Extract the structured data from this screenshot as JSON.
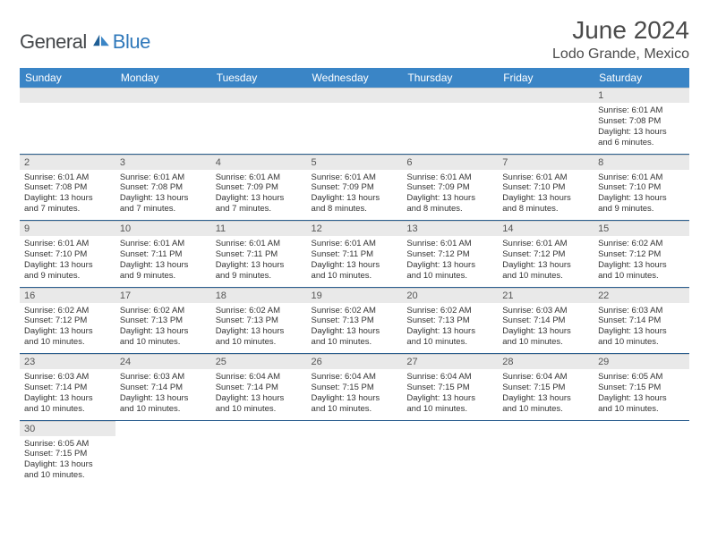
{
  "brand": {
    "general": "General",
    "blue": "Blue"
  },
  "title": "June 2024",
  "location": "Lodo Grande, Mexico",
  "colors": {
    "header_bg": "#3a85c6",
    "header_text": "#ffffff",
    "daynum_bg": "#e9e9e9",
    "row_border": "#2c5f8f",
    "page_bg": "#ffffff",
    "body_text": "#333333",
    "title_text": "#4a4a4a"
  },
  "weekdays": [
    "Sunday",
    "Monday",
    "Tuesday",
    "Wednesday",
    "Thursday",
    "Friday",
    "Saturday"
  ],
  "weeks": [
    [
      null,
      null,
      null,
      null,
      null,
      null,
      {
        "n": "1",
        "sr": "Sunrise: 6:01 AM",
        "ss": "Sunset: 7:08 PM",
        "d1": "Daylight: 13 hours",
        "d2": "and 6 minutes."
      }
    ],
    [
      {
        "n": "2",
        "sr": "Sunrise: 6:01 AM",
        "ss": "Sunset: 7:08 PM",
        "d1": "Daylight: 13 hours",
        "d2": "and 7 minutes."
      },
      {
        "n": "3",
        "sr": "Sunrise: 6:01 AM",
        "ss": "Sunset: 7:08 PM",
        "d1": "Daylight: 13 hours",
        "d2": "and 7 minutes."
      },
      {
        "n": "4",
        "sr": "Sunrise: 6:01 AM",
        "ss": "Sunset: 7:09 PM",
        "d1": "Daylight: 13 hours",
        "d2": "and 7 minutes."
      },
      {
        "n": "5",
        "sr": "Sunrise: 6:01 AM",
        "ss": "Sunset: 7:09 PM",
        "d1": "Daylight: 13 hours",
        "d2": "and 8 minutes."
      },
      {
        "n": "6",
        "sr": "Sunrise: 6:01 AM",
        "ss": "Sunset: 7:09 PM",
        "d1": "Daylight: 13 hours",
        "d2": "and 8 minutes."
      },
      {
        "n": "7",
        "sr": "Sunrise: 6:01 AM",
        "ss": "Sunset: 7:10 PM",
        "d1": "Daylight: 13 hours",
        "d2": "and 8 minutes."
      },
      {
        "n": "8",
        "sr": "Sunrise: 6:01 AM",
        "ss": "Sunset: 7:10 PM",
        "d1": "Daylight: 13 hours",
        "d2": "and 9 minutes."
      }
    ],
    [
      {
        "n": "9",
        "sr": "Sunrise: 6:01 AM",
        "ss": "Sunset: 7:10 PM",
        "d1": "Daylight: 13 hours",
        "d2": "and 9 minutes."
      },
      {
        "n": "10",
        "sr": "Sunrise: 6:01 AM",
        "ss": "Sunset: 7:11 PM",
        "d1": "Daylight: 13 hours",
        "d2": "and 9 minutes."
      },
      {
        "n": "11",
        "sr": "Sunrise: 6:01 AM",
        "ss": "Sunset: 7:11 PM",
        "d1": "Daylight: 13 hours",
        "d2": "and 9 minutes."
      },
      {
        "n": "12",
        "sr": "Sunrise: 6:01 AM",
        "ss": "Sunset: 7:11 PM",
        "d1": "Daylight: 13 hours",
        "d2": "and 10 minutes."
      },
      {
        "n": "13",
        "sr": "Sunrise: 6:01 AM",
        "ss": "Sunset: 7:12 PM",
        "d1": "Daylight: 13 hours",
        "d2": "and 10 minutes."
      },
      {
        "n": "14",
        "sr": "Sunrise: 6:01 AM",
        "ss": "Sunset: 7:12 PM",
        "d1": "Daylight: 13 hours",
        "d2": "and 10 minutes."
      },
      {
        "n": "15",
        "sr": "Sunrise: 6:02 AM",
        "ss": "Sunset: 7:12 PM",
        "d1": "Daylight: 13 hours",
        "d2": "and 10 minutes."
      }
    ],
    [
      {
        "n": "16",
        "sr": "Sunrise: 6:02 AM",
        "ss": "Sunset: 7:12 PM",
        "d1": "Daylight: 13 hours",
        "d2": "and 10 minutes."
      },
      {
        "n": "17",
        "sr": "Sunrise: 6:02 AM",
        "ss": "Sunset: 7:13 PM",
        "d1": "Daylight: 13 hours",
        "d2": "and 10 minutes."
      },
      {
        "n": "18",
        "sr": "Sunrise: 6:02 AM",
        "ss": "Sunset: 7:13 PM",
        "d1": "Daylight: 13 hours",
        "d2": "and 10 minutes."
      },
      {
        "n": "19",
        "sr": "Sunrise: 6:02 AM",
        "ss": "Sunset: 7:13 PM",
        "d1": "Daylight: 13 hours",
        "d2": "and 10 minutes."
      },
      {
        "n": "20",
        "sr": "Sunrise: 6:02 AM",
        "ss": "Sunset: 7:13 PM",
        "d1": "Daylight: 13 hours",
        "d2": "and 10 minutes."
      },
      {
        "n": "21",
        "sr": "Sunrise: 6:03 AM",
        "ss": "Sunset: 7:14 PM",
        "d1": "Daylight: 13 hours",
        "d2": "and 10 minutes."
      },
      {
        "n": "22",
        "sr": "Sunrise: 6:03 AM",
        "ss": "Sunset: 7:14 PM",
        "d1": "Daylight: 13 hours",
        "d2": "and 10 minutes."
      }
    ],
    [
      {
        "n": "23",
        "sr": "Sunrise: 6:03 AM",
        "ss": "Sunset: 7:14 PM",
        "d1": "Daylight: 13 hours",
        "d2": "and 10 minutes."
      },
      {
        "n": "24",
        "sr": "Sunrise: 6:03 AM",
        "ss": "Sunset: 7:14 PM",
        "d1": "Daylight: 13 hours",
        "d2": "and 10 minutes."
      },
      {
        "n": "25",
        "sr": "Sunrise: 6:04 AM",
        "ss": "Sunset: 7:14 PM",
        "d1": "Daylight: 13 hours",
        "d2": "and 10 minutes."
      },
      {
        "n": "26",
        "sr": "Sunrise: 6:04 AM",
        "ss": "Sunset: 7:15 PM",
        "d1": "Daylight: 13 hours",
        "d2": "and 10 minutes."
      },
      {
        "n": "27",
        "sr": "Sunrise: 6:04 AM",
        "ss": "Sunset: 7:15 PM",
        "d1": "Daylight: 13 hours",
        "d2": "and 10 minutes."
      },
      {
        "n": "28",
        "sr": "Sunrise: 6:04 AM",
        "ss": "Sunset: 7:15 PM",
        "d1": "Daylight: 13 hours",
        "d2": "and 10 minutes."
      },
      {
        "n": "29",
        "sr": "Sunrise: 6:05 AM",
        "ss": "Sunset: 7:15 PM",
        "d1": "Daylight: 13 hours",
        "d2": "and 10 minutes."
      }
    ],
    [
      {
        "n": "30",
        "sr": "Sunrise: 6:05 AM",
        "ss": "Sunset: 7:15 PM",
        "d1": "Daylight: 13 hours",
        "d2": "and 10 minutes."
      },
      null,
      null,
      null,
      null,
      null,
      null
    ]
  ]
}
